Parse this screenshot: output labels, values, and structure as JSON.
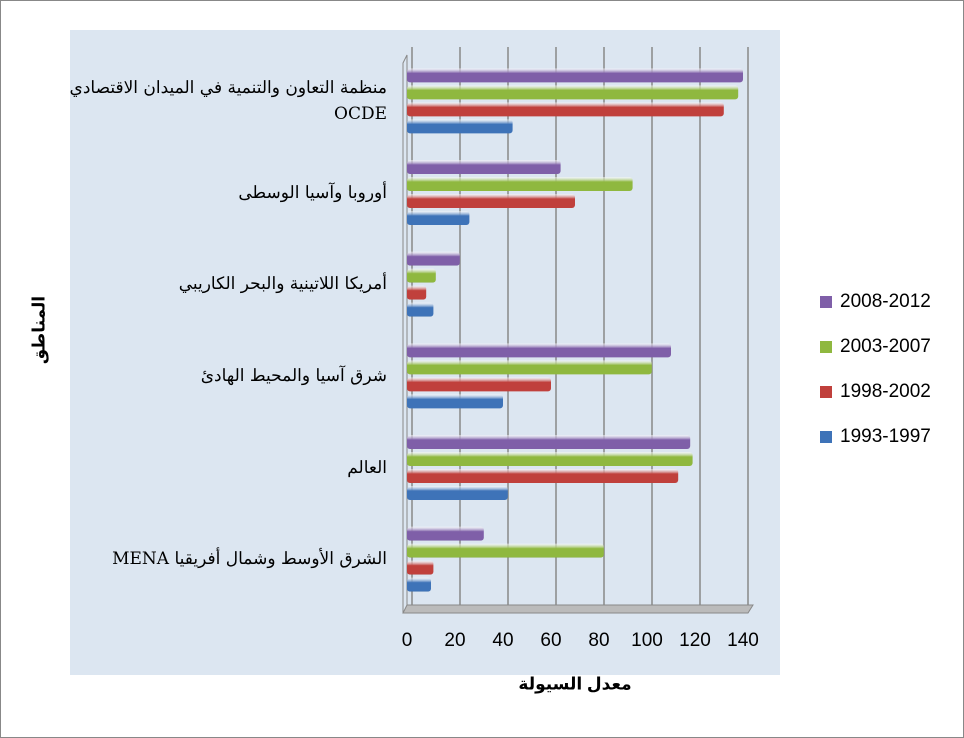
{
  "chart_data": {
    "type": "bar",
    "orientation": "horizontal",
    "x_label": "معدل السيولة",
    "y_label": "المناطق",
    "categories": [
      "منظمة التعاون والتنمية في الميدان الاقتصادي OCDE",
      "أوروبا وآسيا الوسطى",
      "أمريكا اللاتينية والبحر الكاريبي",
      "شرق آسيا والمحيط الهادئ",
      "العالم",
      "الشرق الأوسط وشمال أفريقيا MENA"
    ],
    "series": [
      {
        "name": "2008-2012",
        "color": "#7f5fa8",
        "values": [
          140,
          64,
          22,
          110,
          118,
          32
        ]
      },
      {
        "name": "2003-2007",
        "color": "#8fb83f",
        "values": [
          138,
          94,
          12,
          102,
          119,
          82
        ]
      },
      {
        "name": "1998-2002",
        "color": "#c0403c",
        "values": [
          132,
          70,
          8,
          60,
          113,
          11
        ]
      },
      {
        "name": "1993-1997",
        "color": "#3e73b8",
        "values": [
          44,
          26,
          11,
          40,
          42,
          10
        ]
      }
    ],
    "xlim": [
      0,
      140
    ],
    "xticks": [
      0,
      20,
      40,
      60,
      80,
      100,
      120,
      140
    ],
    "grid": true,
    "legend": "right"
  }
}
